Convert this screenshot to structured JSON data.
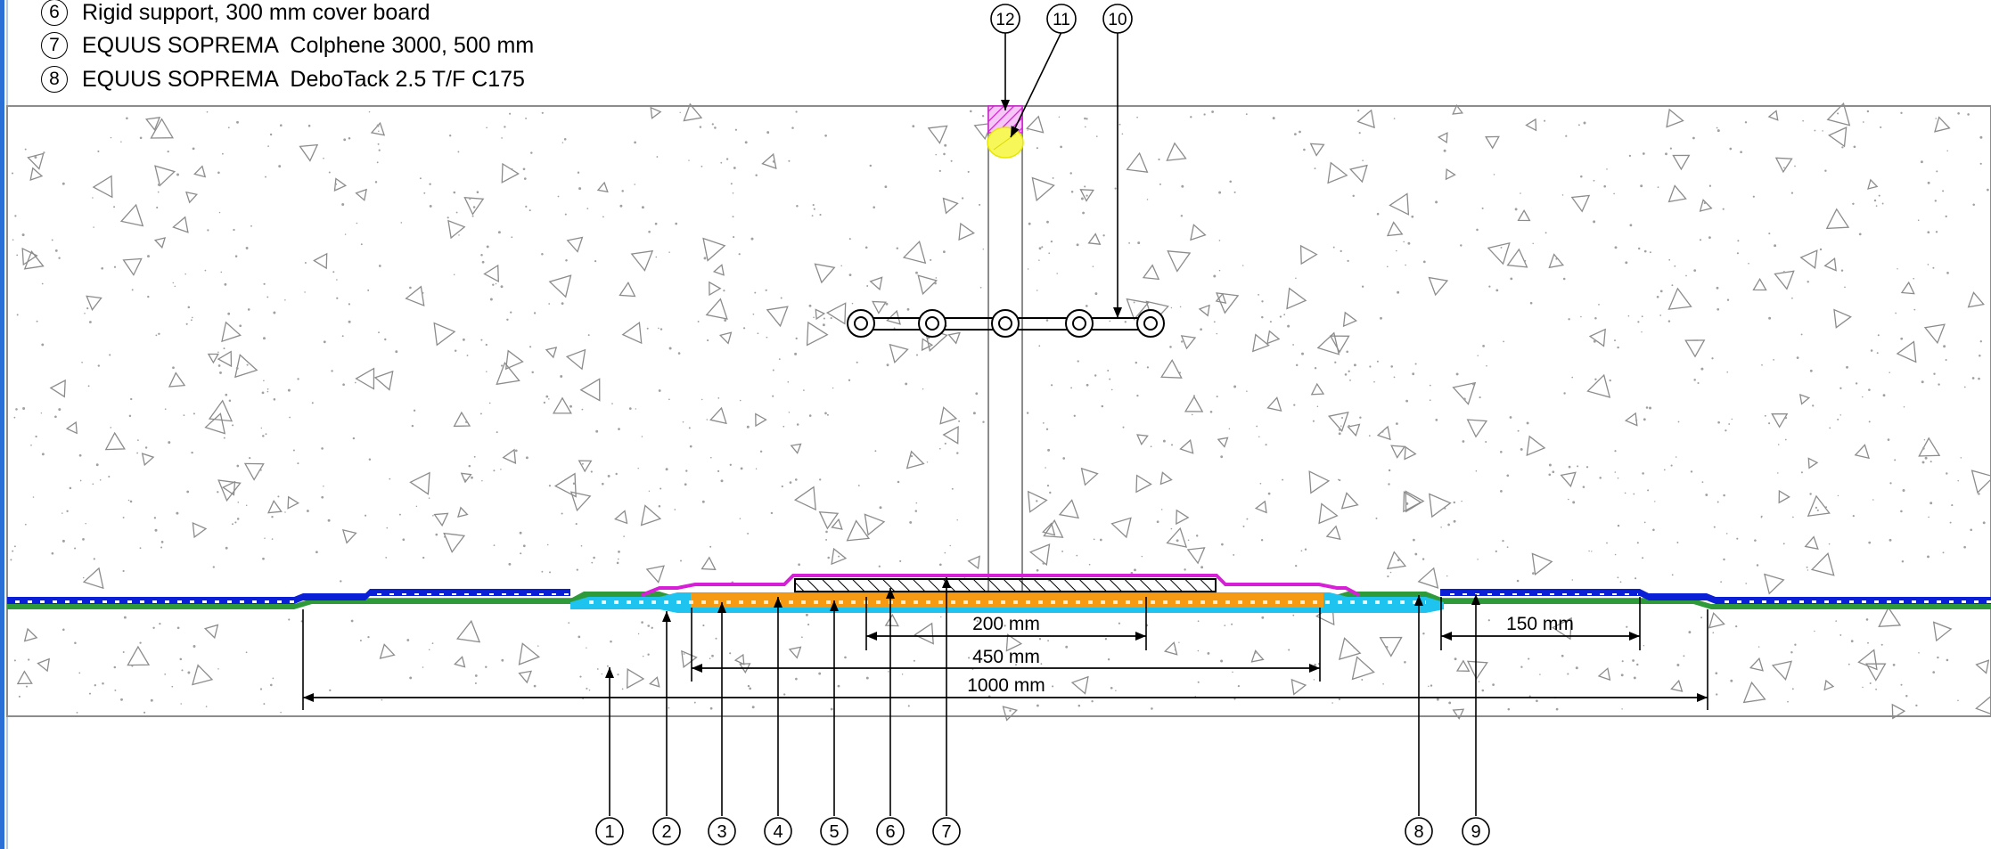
{
  "legend": [
    {
      "num": "6",
      "text": "Rigid support, 300 mm cover board"
    },
    {
      "num": "7",
      "text": "EQUUS SOPREMA  Colphene 3000, 500 mm"
    },
    {
      "num": "8",
      "text": "EQUUS SOPREMA  DeboTack 2.5 T/F C175"
    }
  ],
  "callouts_bottom": [
    "1",
    "2",
    "3",
    "4",
    "5",
    "6",
    "7",
    "8",
    "9"
  ],
  "callouts_top": [
    "12",
    "11",
    "10"
  ],
  "dimensions": {
    "d200": "200 mm",
    "d450": "450 mm",
    "d1000": "1000 mm",
    "d150": "150 mm"
  },
  "colors": {
    "membrane_dark": "#1f3fbf",
    "membrane_blue": "#0a1fd6",
    "green_layer": "#2e9a3a",
    "cyan_layer": "#1fc3ef",
    "orange_layer": "#f59a12",
    "magenta_layer": "#d81fd8",
    "yellow_backer": "#f2f23a",
    "concrete_lines": "#8c8c8c"
  }
}
